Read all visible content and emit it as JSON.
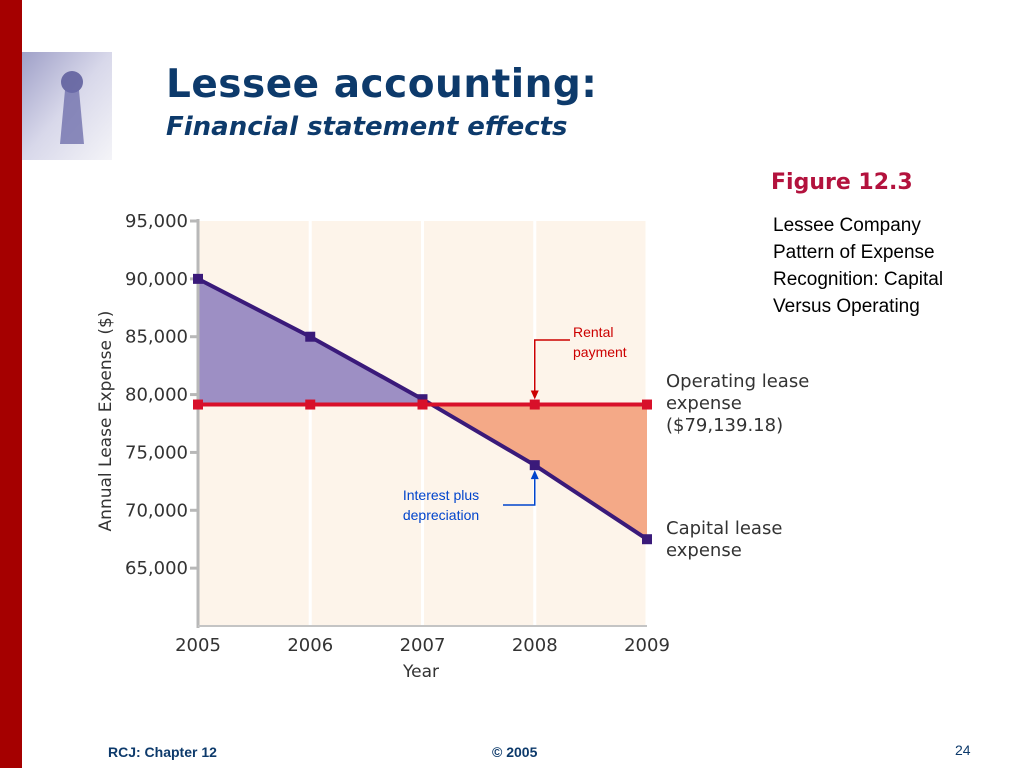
{
  "slide": {
    "title": "Lessee accounting:",
    "subtitle": "Financial statement effects",
    "figure_label": "Figure 12.3",
    "caption_lines": [
      "Lessee Company",
      "Pattern of Expense",
      "Recognition: Capital",
      "Versus Operating"
    ],
    "footer_left": "RCJ: Chapter 12",
    "footer_center": "© 2005",
    "page_number": "24"
  },
  "colors": {
    "accent_bar": "#a50000",
    "title": "#0d3a6b",
    "figure_label": "#b3123d",
    "capital_line": "#3a1a7a",
    "operating_line": "#d8102a",
    "capital_excess_fill": "#9d8fc4",
    "operating_excess_fill": "#f4a987",
    "plot_background": "#fdf4ea",
    "annotation_red": "#cc0000",
    "annotation_blue": "#0044cc"
  },
  "chart_data": {
    "type": "line",
    "title": "",
    "xlabel": "Year",
    "ylabel": "Annual Lease Expense ($)",
    "x": [
      2005,
      2006,
      2007,
      2008,
      2009
    ],
    "x_tick_labels": [
      "2005",
      "2006",
      "2007",
      "2008",
      "2009"
    ],
    "y_tick_values": [
      65000,
      70000,
      75000,
      80000,
      85000,
      90000,
      95000
    ],
    "y_tick_labels": [
      "65,000",
      "70,000",
      "75,000",
      "80,000",
      "85,000",
      "90,000",
      "95,000"
    ],
    "ylim": [
      60000,
      95000
    ],
    "grid": true,
    "series": [
      {
        "key": "capital",
        "label_lines": [
          "Capital lease",
          "expense"
        ],
        "values": [
          90000,
          85000,
          79600,
          73900,
          67500
        ]
      },
      {
        "key": "operating",
        "label_lines": [
          "Operating lease",
          "expense",
          "($79,139.18)"
        ],
        "values": [
          79139.18,
          79139.18,
          79139.18,
          79139.18,
          79139.18
        ]
      }
    ],
    "annotations": [
      {
        "key": "rental",
        "text_lines": [
          "Rental",
          "payment"
        ],
        "x": 2008,
        "y": 79139.18
      },
      {
        "key": "interest",
        "text_lines": [
          "Interest plus",
          "depreciation"
        ],
        "x": 2008,
        "y": 73900
      }
    ]
  }
}
